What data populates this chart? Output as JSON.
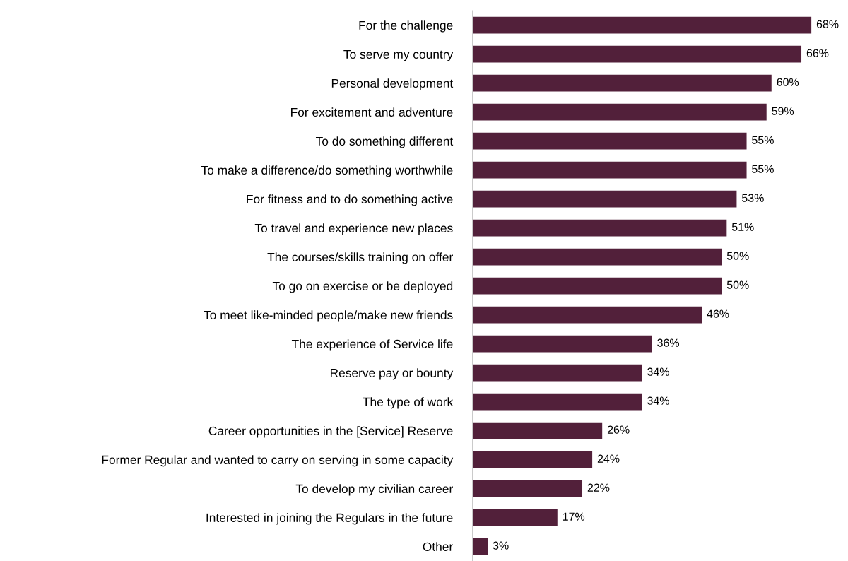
{
  "chart_data": {
    "type": "bar",
    "orientation": "horizontal",
    "categories": [
      "For the challenge",
      "To serve my country",
      "Personal development",
      "For excitement and adventure",
      "To do something different",
      "To make a difference/do something worthwhile",
      "For fitness and to do something active",
      "To travel and experience new places",
      "The courses/skills training on offer",
      "To go on exercise or be deployed",
      "To meet like-minded people/make new friends",
      "The experience of Service life",
      "Reserve pay or bounty",
      "The type of work",
      "Career opportunities in the [Service] Reserve",
      "Former Regular and wanted to carry on serving in some capacity",
      "To develop my civilian career",
      "Interested in joining the Regulars in the future",
      "Other"
    ],
    "values": [
      68,
      66,
      60,
      59,
      55,
      55,
      53,
      51,
      50,
      50,
      46,
      36,
      34,
      34,
      26,
      24,
      22,
      17,
      3
    ],
    "value_labels": [
      "68%",
      "66%",
      "60%",
      "59%",
      "55%",
      "55%",
      "53%",
      "51%",
      "50%",
      "50%",
      "46%",
      "36%",
      "34%",
      "34%",
      "26%",
      "24%",
      "22%",
      "17%",
      "3%"
    ],
    "color": "#52203a",
    "tick_labels": "y",
    "grid": false,
    "legend": false
  }
}
